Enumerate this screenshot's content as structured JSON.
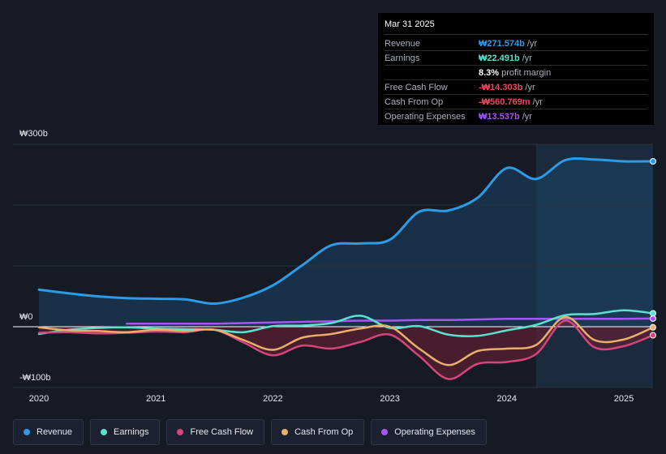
{
  "tooltip": {
    "date": "Mar 31 2025",
    "rows": [
      {
        "label": "Revenue",
        "value": "₩271.574b",
        "unit": "/yr",
        "color": "#2d9be6"
      },
      {
        "label": "Earnings",
        "value": "₩22.491b",
        "unit": "/yr",
        "color": "#5ce0d0"
      },
      {
        "label": "",
        "value": "8.3%",
        "unit": "profit margin",
        "color": "#ffffff"
      },
      {
        "label": "Free Cash Flow",
        "value": "-₩14.303b",
        "unit": "/yr",
        "color": "#e84a5f"
      },
      {
        "label": "Cash From Op",
        "value": "-₩560.769m",
        "unit": "/yr",
        "color": "#e84a5f"
      },
      {
        "label": "Operating Expenses",
        "value": "₩13.537b",
        "unit": "/yr",
        "color": "#a855f7"
      }
    ]
  },
  "legend": [
    {
      "label": "Revenue",
      "color": "#2d9be6"
    },
    {
      "label": "Earnings",
      "color": "#5ce0d0"
    },
    {
      "label": "Free Cash Flow",
      "color": "#d6457a"
    },
    {
      "label": "Cash From Op",
      "color": "#e8b06a"
    },
    {
      "label": "Operating Expenses",
      "color": "#a855f7"
    }
  ],
  "chart_data": {
    "type": "line",
    "title": "",
    "xlabel": "",
    "ylabel": "",
    "ylim": [
      -100,
      300
    ],
    "y_tick_labels": [
      "₩300b",
      "₩0",
      "-₩100b"
    ],
    "x_tick_labels": [
      "2020",
      "2021",
      "2022",
      "2023",
      "2024",
      "2025"
    ],
    "xlim": [
      2020.0,
      2025.25
    ],
    "highlight_from": 2024.25,
    "series": [
      {
        "name": "Revenue",
        "color": "#2d9be6",
        "x": [
          2020.0,
          2020.25,
          2020.5,
          2020.75,
          2021.0,
          2021.25,
          2021.5,
          2021.75,
          2022.0,
          2022.25,
          2022.5,
          2022.75,
          2023.0,
          2023.25,
          2023.5,
          2023.75,
          2024.0,
          2024.25,
          2024.5,
          2024.75,
          2025.0,
          2025.25
        ],
        "values": [
          61,
          55,
          50,
          47,
          46,
          45,
          38,
          48,
          68,
          101,
          134,
          137,
          143,
          189,
          191,
          212,
          261,
          243,
          274,
          275,
          272,
          272
        ]
      },
      {
        "name": "Earnings",
        "color": "#5ce0d0",
        "x": [
          2020.0,
          2020.25,
          2020.5,
          2020.75,
          2021.0,
          2021.25,
          2021.5,
          2021.75,
          2022.0,
          2022.25,
          2022.5,
          2022.75,
          2023.0,
          2023.25,
          2023.5,
          2023.75,
          2024.0,
          2024.25,
          2024.5,
          2024.75,
          2025.0,
          2025.25
        ],
        "values": [
          -12,
          -5,
          -2,
          -1,
          -3,
          -4,
          -5,
          -9,
          1,
          2,
          6,
          18,
          -2,
          1,
          -13,
          -15,
          -6,
          3,
          19,
          21,
          27,
          22
        ]
      },
      {
        "name": "Free Cash Flow",
        "color": "#d6457a",
        "x": [
          2020.0,
          2020.25,
          2020.5,
          2020.75,
          2021.0,
          2021.25,
          2021.5,
          2021.75,
          2022.0,
          2022.25,
          2022.5,
          2022.75,
          2023.0,
          2023.25,
          2023.5,
          2023.75,
          2024.0,
          2024.25,
          2024.5,
          2024.75,
          2025.0,
          2025.25
        ],
        "values": [
          -10,
          -9,
          -11,
          -10,
          -8,
          -9,
          -5,
          -26,
          -47,
          -31,
          -36,
          -25,
          -13,
          -48,
          -86,
          -61,
          -58,
          -45,
          10,
          -34,
          -32,
          -14
        ]
      },
      {
        "name": "Cash From Op",
        "color": "#e8b06a",
        "x": [
          2020.0,
          2020.25,
          2020.5,
          2020.75,
          2021.0,
          2021.25,
          2021.5,
          2021.75,
          2022.0,
          2022.25,
          2022.5,
          2022.75,
          2023.0,
          2023.25,
          2023.5,
          2023.75,
          2024.0,
          2024.25,
          2024.5,
          2024.75,
          2025.0,
          2025.25
        ],
        "values": [
          -1,
          -6,
          -7,
          -9,
          -5,
          -7,
          -5,
          -22,
          -38,
          -18,
          -12,
          -3,
          0,
          -36,
          -63,
          -40,
          -36,
          -30,
          16,
          -22,
          -21,
          -1
        ]
      },
      {
        "name": "Operating Expenses",
        "color": "#a855f7",
        "x": [
          2020.75,
          2021.0,
          2021.25,
          2021.5,
          2021.75,
          2022.0,
          2022.25,
          2022.5,
          2022.75,
          2023.0,
          2023.25,
          2023.5,
          2023.75,
          2024.0,
          2024.25,
          2024.5,
          2024.75,
          2025.0,
          2025.25
        ],
        "values": [
          5,
          5,
          5,
          5,
          6,
          7,
          8,
          9,
          10,
          10,
          11,
          11,
          12,
          13,
          13,
          13,
          13,
          13,
          13.5
        ]
      }
    ]
  }
}
